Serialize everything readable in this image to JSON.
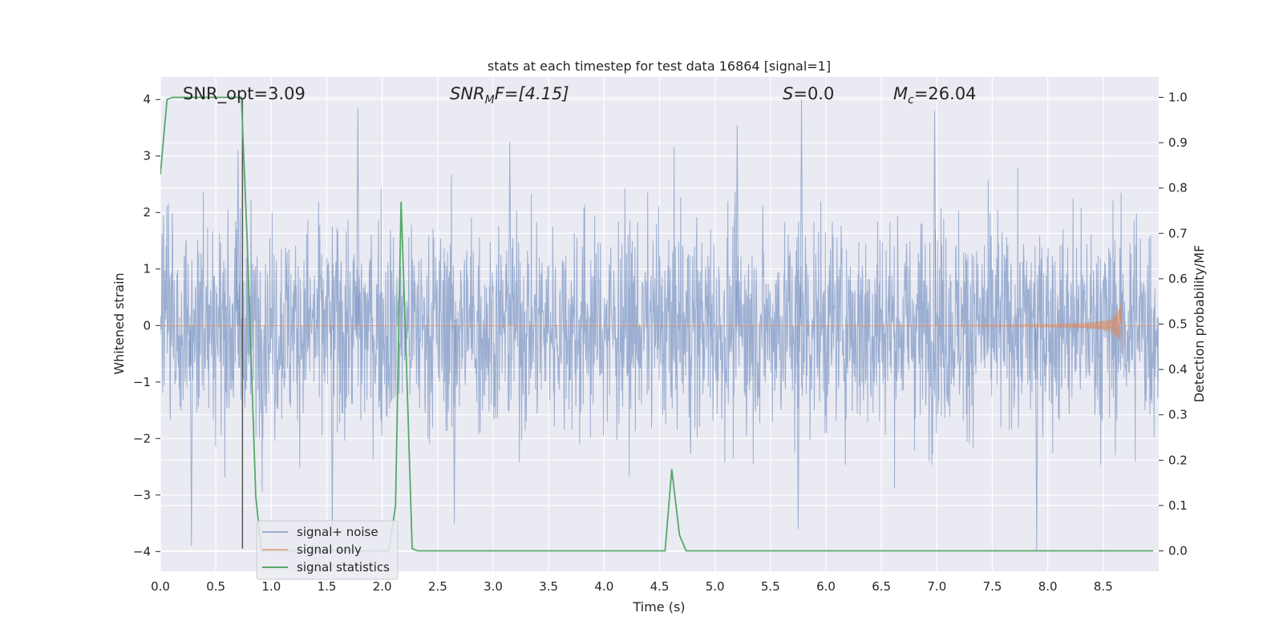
{
  "chart_data": {
    "type": "line",
    "title": "stats at each timestep for test data 16864 [signal=1]",
    "xlabel": "Time (s)",
    "ylabel": "Whitened strain",
    "y2label": "Detection probability/MF",
    "xlim": [
      0.0,
      9.0
    ],
    "ylim": [
      -4.35,
      4.4
    ],
    "y2lim": [
      -0.045,
      1.045
    ],
    "x_ticks": [
      "0.0",
      "0.5",
      "1.0",
      "1.5",
      "2.0",
      "2.5",
      "3.0",
      "3.5",
      "4.0",
      "4.5",
      "5.0",
      "5.5",
      "6.0",
      "6.5",
      "7.0",
      "7.5",
      "8.0",
      "8.5"
    ],
    "y_ticks": [
      "4",
      "3",
      "2",
      "1",
      "0",
      "−1",
      "−2",
      "−3",
      "−4"
    ],
    "y2_ticks": [
      "1.0",
      "0.9",
      "0.8",
      "0.7",
      "0.6",
      "0.5",
      "0.4",
      "0.3",
      "0.2",
      "0.1",
      "0.0"
    ],
    "grid": true,
    "legend_position": "lower-left",
    "colors": {
      "background": "#eaeaf2",
      "grid": "#ffffff",
      "signal_noise": "#4c72b0",
      "signal_only": "#dd8452",
      "signal_statistics": "#55a868",
      "marker_line": "#555555"
    },
    "annotations": {
      "snr_opt": "SNR_opt=3.09",
      "snr_mf_base": "SNR",
      "snr_mf_sub": "M",
      "snr_mf_rest": "F=[4.15]",
      "s_var": "S",
      "s_rest": "=0.0",
      "mc_var": "M",
      "mc_sub": "c",
      "mc_rest": "=26.04"
    },
    "marker_line": {
      "x": 0.74,
      "y_from": -3.95,
      "y_to": 4.0
    },
    "series": [
      {
        "name": "signal+ noise",
        "note_envelope": "dense noise, approx. |value| ~1.6 typical, peaks up to ~4",
        "peaks": [
          {
            "x": 0.7,
            "y": 3.1
          },
          {
            "x": 1.78,
            "y": 3.85
          },
          {
            "x": 3.15,
            "y": 3.25
          },
          {
            "x": 5.2,
            "y": 3.55
          },
          {
            "x": 5.78,
            "y": 4.0
          },
          {
            "x": 6.98,
            "y": 3.8
          },
          {
            "x": 0.28,
            "y": -3.9
          },
          {
            "x": 1.55,
            "y": -3.75
          },
          {
            "x": 2.65,
            "y": -3.5
          },
          {
            "x": 5.75,
            "y": -3.6
          },
          {
            "x": 7.9,
            "y": -4.0
          }
        ]
      },
      {
        "name": "signal only",
        "chirp": {
          "t_start": 4.5,
          "t_merge": 8.67,
          "peak_amplitude": 0.68
        }
      },
      {
        "name": "signal statistics",
        "points": [
          [
            0.0,
            0.83
          ],
          [
            0.06,
            0.995
          ],
          [
            0.11,
            1.0
          ],
          [
            0.68,
            1.0
          ],
          [
            0.73,
            1.0
          ],
          [
            0.78,
            0.7
          ],
          [
            0.86,
            0.12
          ],
          [
            0.91,
            0.0
          ],
          [
            2.06,
            0.0
          ],
          [
            2.12,
            0.1
          ],
          [
            2.17,
            0.77
          ],
          [
            2.22,
            0.4
          ],
          [
            2.27,
            0.005
          ],
          [
            2.32,
            0.0
          ],
          [
            4.55,
            0.0
          ],
          [
            4.61,
            0.18
          ],
          [
            4.68,
            0.035
          ],
          [
            4.74,
            0.0
          ],
          [
            8.95,
            0.0
          ]
        ]
      }
    ]
  }
}
